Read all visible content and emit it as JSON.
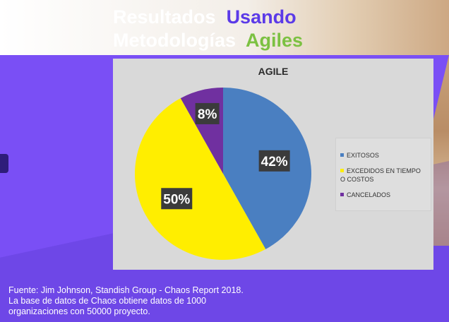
{
  "slide": {
    "title_line1_a": "Resultados",
    "title_line1_b": "Usando",
    "title_line2_a": "Metodologías",
    "title_line2_b": "Agiles",
    "footer_lines": [
      "Fuente: Jim Johnson, Standish Group - Chaos Report 2018.",
      "La base de datos de Chaos obtiene datos de 1000",
      "organizaciones con 50000 proyecto."
    ]
  },
  "colors": {
    "background": "#7a4ff5",
    "title_white": "#ffffff",
    "title_purple": "#5b3ae8",
    "title_green": "#7cc142"
  },
  "chart_data": {
    "type": "pie",
    "title": "AGILE",
    "legend_position": "right",
    "slices": [
      {
        "label": "EXITOSOS",
        "value": 42,
        "display": "42%",
        "color": "#4a7fc1"
      },
      {
        "label": "EXCEDIDOS EN TIEMPO O COSTOS",
        "value": 50,
        "display": "50%",
        "color": "#ffee00"
      },
      {
        "label": "CANCELADOS",
        "value": 8,
        "display": "8%",
        "color": "#7030a0"
      }
    ]
  }
}
